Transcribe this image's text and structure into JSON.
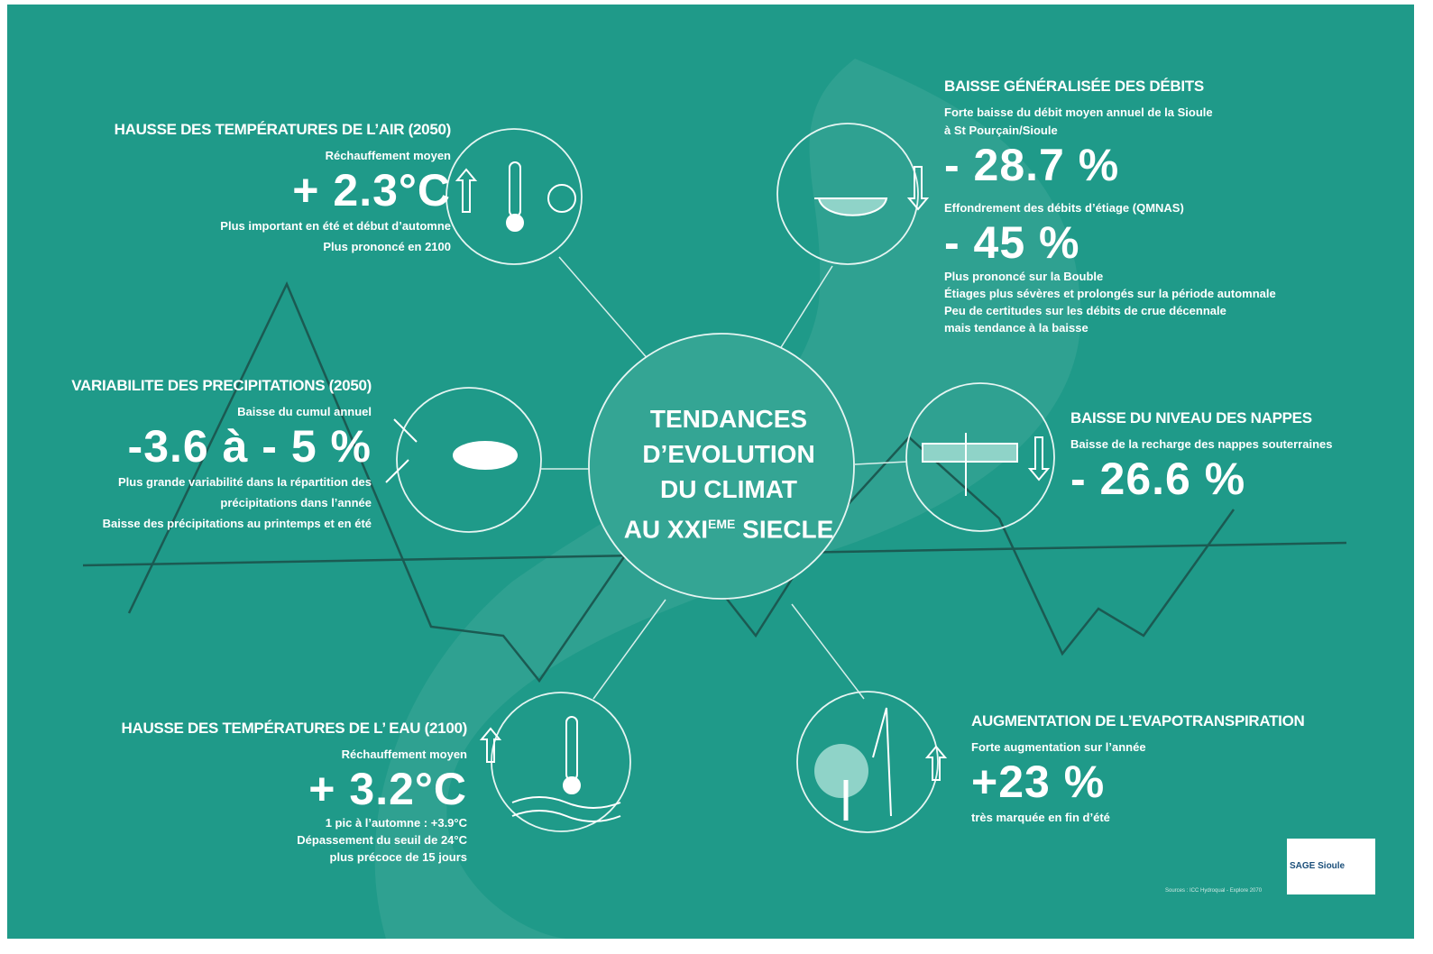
{
  "center": {
    "lines": [
      "TENDANCES",
      "D’EVOLUTION",
      "DU CLIMAT"
    ],
    "last": "AU XXI",
    "sup": "EME",
    "end": " SIECLE"
  },
  "sections": [
    {
      "title": "HAUSSE DES TEMPÉRATURES DE L’AIR (2050)",
      "subtitle": [
        "Réchauffement moyen"
      ],
      "value": "+ 2.3°C",
      "notes": [
        "Plus  important en été et début d’automne",
        "Plus prononcé en 2100"
      ]
    },
    {
      "title": "BAISSE GÉNÉRALISÉE DES DÉBITS",
      "subtitle": [
        "Forte baisse du débit moyen annuel de la Sioule",
        "à St Pourçain/Sioule"
      ],
      "value": "- 28.7 %",
      "subtitle2": "Effondrement des débits d’étiage (QMNAS)",
      "value2": "- 45 %",
      "notes": [
        "Plus prononcé sur la Bouble",
        "Étiages plus sévères et prolongés sur la période automnale",
        "Peu de certitudes sur les débits de crue décennale",
        "mais tendance à la baisse"
      ]
    },
    {
      "title": "VARIABILITE DES PRECIPITATIONS (2050)",
      "subtitle": [
        "Baisse du cumul annuel"
      ],
      "value": "-3.6 à - 5 %",
      "notes": [
        "Plus grande variabilité dans la répartition des",
        "précipitations dans l’année",
        "Baisse des précipitations au printemps et en été"
      ]
    },
    {
      "title": "BAISSE DU NIVEAU DES NAPPES",
      "subtitle": [
        "Baisse de la recharge des nappes souterraines"
      ],
      "value": "- 26.6 %"
    },
    {
      "title": "HAUSSE DES TEMPÉRATURES DE L’ EAU (2100)",
      "subtitle": [
        "Réchauffement moyen"
      ],
      "value": "+ 3.2°C",
      "notes": [
        "1 pic à l’automne : +3.9°C",
        "Dépassement  du seuil de 24°C",
        "plus précoce de 15 jours"
      ]
    },
    {
      "title": "AUGMENTATION DE L’EVAPOTRANSPIRATION",
      "subtitle": [
        "Forte augmentation sur l’année"
      ],
      "value": "+23 %",
      "notes": [
        "très marquée en fin d’été"
      ]
    }
  ],
  "logo": "SAGE Sioule",
  "source": "Sources : ICC Hydroqual - Explore 2070"
}
